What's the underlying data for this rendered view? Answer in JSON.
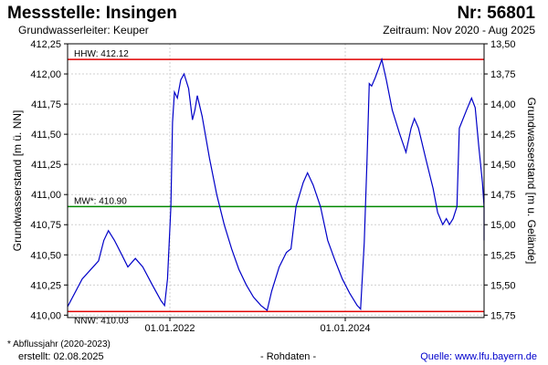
{
  "header": {
    "title": "Messstelle: Insingen",
    "station_nr": "Nr: 56801",
    "aquifer": "Grundwasserleiter: Keuper",
    "period": "Zeitraum: Nov 2020 - Aug 2025"
  },
  "footer": {
    "footnote": "* Abflussjahr (2020-2023)",
    "created": "erstellt:  02.08.2025",
    "raw_data": "- Rohdaten -",
    "source": "Quelle:  www.lfu.bayern.de"
  },
  "chart_data": {
    "type": "line",
    "title": "",
    "ylabel": "Grundwasserstand [m ü. NN]",
    "ylabel_right": "Grundwasserstand [m u. Gelände]",
    "ylim": [
      409.98,
      412.25
    ],
    "ylim_right": [
      15.77,
      13.5
    ],
    "xlim": [
      "2020-11-01",
      "2025-08-01"
    ],
    "y_ticks": [
      "410,00",
      "410,25",
      "410,50",
      "410,75",
      "411,00",
      "411,25",
      "411,50",
      "411,75",
      "412,00",
      "412,25"
    ],
    "y_ticks_right": [
      "15,75",
      "15,50",
      "15,25",
      "15,00",
      "14,75",
      "14,50",
      "14,25",
      "14,00",
      "13,75",
      "13,50"
    ],
    "x_ticks": [
      {
        "date": "2022-01-01",
        "label": "01.01.2022"
      },
      {
        "date": "2024-01-01",
        "label": "01.01.2024"
      }
    ],
    "grid": true,
    "line_color": "#0000c8",
    "reference_lines": [
      {
        "label": "HHW: 412.12",
        "value": 412.12,
        "color": "#e00000"
      },
      {
        "label": "MW*: 410.90",
        "value": 410.9,
        "color": "#008800"
      },
      {
        "label": "NNW: 410.03",
        "value": 410.03,
        "color": "#e00000"
      }
    ],
    "series": [
      {
        "points": [
          [
            "2020-11-01",
            410.07
          ],
          [
            "2021-01-01",
            410.3
          ],
          [
            "2021-03-10",
            410.45
          ],
          [
            "2021-04-01",
            410.62
          ],
          [
            "2021-04-20",
            410.7
          ],
          [
            "2021-05-15",
            410.62
          ],
          [
            "2021-06-15",
            410.5
          ],
          [
            "2021-07-10",
            410.4
          ],
          [
            "2021-08-10",
            410.47
          ],
          [
            "2021-09-10",
            410.4
          ],
          [
            "2021-10-20",
            410.25
          ],
          [
            "2021-11-25",
            410.12
          ],
          [
            "2021-12-10",
            410.08
          ],
          [
            "2021-12-22",
            410.3
          ],
          [
            "2022-01-05",
            410.9
          ],
          [
            "2022-01-12",
            411.6
          ],
          [
            "2022-01-20",
            411.85
          ],
          [
            "2022-02-01",
            411.8
          ],
          [
            "2022-02-15",
            411.95
          ],
          [
            "2022-03-01",
            412.0
          ],
          [
            "2022-03-20",
            411.88
          ],
          [
            "2022-04-05",
            411.62
          ],
          [
            "2022-04-15",
            411.7
          ],
          [
            "2022-04-25",
            411.82
          ],
          [
            "2022-05-15",
            411.65
          ],
          [
            "2022-06-15",
            411.3
          ],
          [
            "2022-07-15",
            411.0
          ],
          [
            "2022-08-15",
            410.75
          ],
          [
            "2022-09-15",
            410.55
          ],
          [
            "2022-10-15",
            410.38
          ],
          [
            "2022-11-15",
            410.25
          ],
          [
            "2022-12-15",
            410.15
          ],
          [
            "2023-01-15",
            410.08
          ],
          [
            "2023-02-10",
            410.04
          ],
          [
            "2023-03-01",
            410.2
          ],
          [
            "2023-04-01",
            410.4
          ],
          [
            "2023-05-01",
            410.52
          ],
          [
            "2023-05-20",
            410.55
          ],
          [
            "2023-06-10",
            410.9
          ],
          [
            "2023-07-10",
            411.1
          ],
          [
            "2023-07-28",
            411.18
          ],
          [
            "2023-08-20",
            411.08
          ],
          [
            "2023-09-20",
            410.9
          ],
          [
            "2023-10-20",
            410.62
          ],
          [
            "2023-11-20",
            410.45
          ],
          [
            "2023-12-20",
            410.3
          ],
          [
            "2024-01-20",
            410.18
          ],
          [
            "2024-02-20",
            410.08
          ],
          [
            "2024-03-05",
            410.05
          ],
          [
            "2024-03-20",
            410.6
          ],
          [
            "2024-04-01",
            411.3
          ],
          [
            "2024-04-10",
            411.92
          ],
          [
            "2024-04-20",
            411.9
          ],
          [
            "2024-05-05",
            411.97
          ],
          [
            "2024-05-20",
            412.05
          ],
          [
            "2024-06-01",
            412.12
          ],
          [
            "2024-06-20",
            411.95
          ],
          [
            "2024-07-15",
            411.7
          ],
          [
            "2024-08-15",
            411.5
          ],
          [
            "2024-09-10",
            411.35
          ],
          [
            "2024-10-01",
            411.55
          ],
          [
            "2024-10-15",
            411.63
          ],
          [
            "2024-11-01",
            411.55
          ],
          [
            "2024-12-01",
            411.3
          ],
          [
            "2025-01-01",
            411.05
          ],
          [
            "2025-01-20",
            410.85
          ],
          [
            "2025-02-10",
            410.75
          ],
          [
            "2025-02-25",
            410.8
          ],
          [
            "2025-03-10",
            410.75
          ],
          [
            "2025-03-25",
            410.8
          ],
          [
            "2025-04-10",
            410.9
          ],
          [
            "2025-04-20",
            411.55
          ],
          [
            "2025-05-20",
            411.7
          ],
          [
            "2025-06-10",
            411.8
          ],
          [
            "2025-06-25",
            411.72
          ],
          [
            "2025-07-10",
            411.4
          ],
          [
            "2025-07-25",
            411.1
          ],
          [
            "2025-08-10",
            410.9
          ],
          [
            "2025-08-31",
            410.62
          ]
        ]
      }
    ]
  }
}
